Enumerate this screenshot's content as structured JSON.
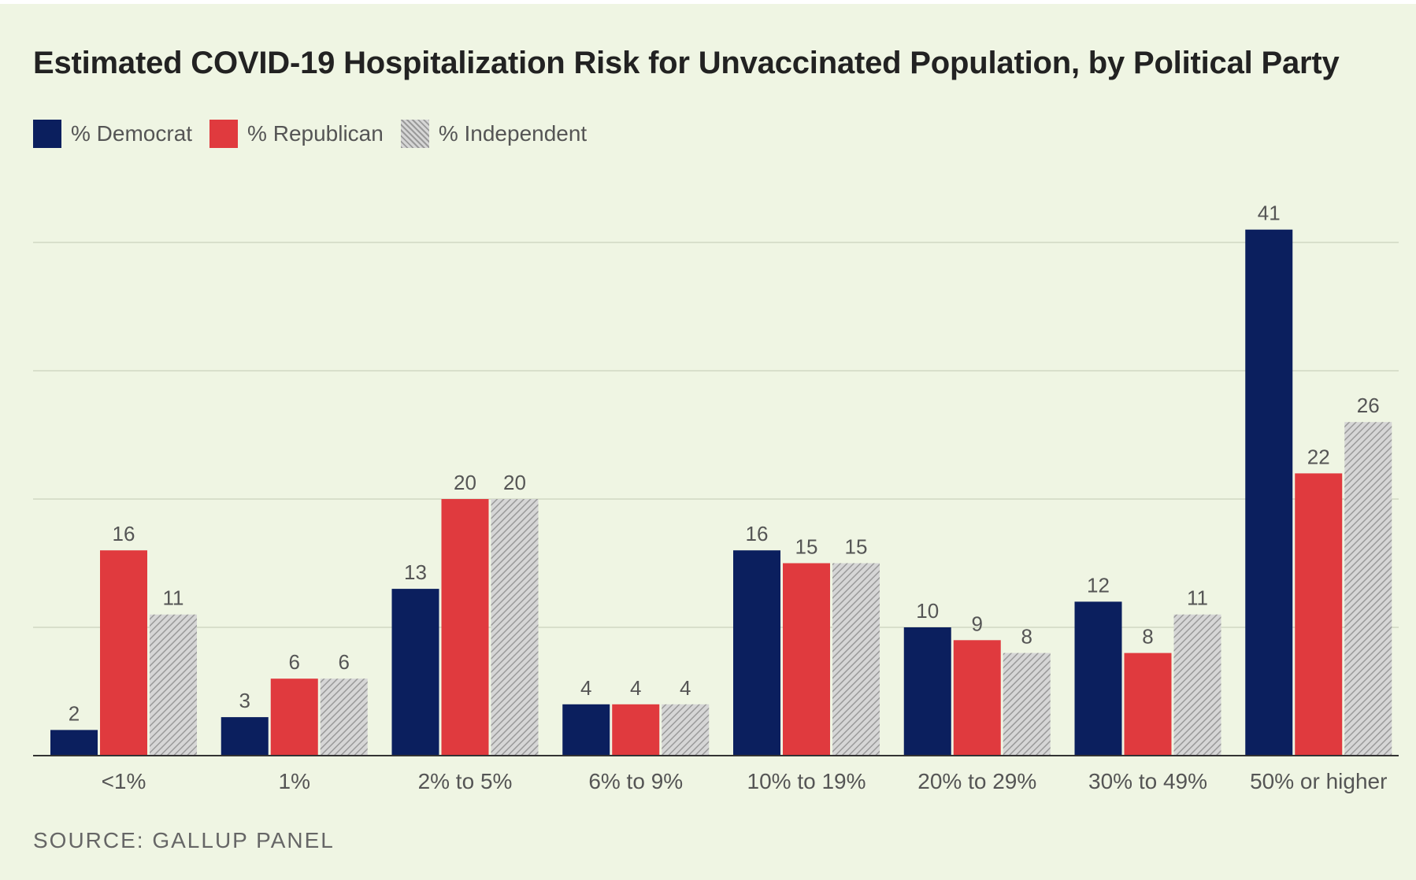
{
  "chart_data": {
    "type": "bar",
    "title": "Estimated COVID-19 Hospitalization Risk for Unvaccinated Population, by Political Party",
    "xlabel": "",
    "ylabel": "",
    "ylim": [
      0,
      45
    ],
    "grid": true,
    "legend_position": "top-left",
    "categories": [
      "<1%",
      "1%",
      "2% to 5%",
      "6% to 9%",
      "10% to 19%",
      "20% to 29%",
      "30% to 49%",
      "50% or higher"
    ],
    "series": [
      {
        "name": "% Democrat",
        "color": "#0b1f5e",
        "values": [
          2,
          3,
          13,
          4,
          16,
          10,
          12,
          41
        ]
      },
      {
        "name": "% Republican",
        "color": "#e03a3e",
        "values": [
          16,
          6,
          20,
          4,
          15,
          9,
          8,
          22
        ]
      },
      {
        "name": "% Independent",
        "color": "#c6c6c6",
        "pattern": "hatched",
        "values": [
          11,
          6,
          20,
          4,
          15,
          8,
          11,
          26
        ]
      }
    ],
    "source": "SOURCE:  GALLUP PANEL"
  }
}
